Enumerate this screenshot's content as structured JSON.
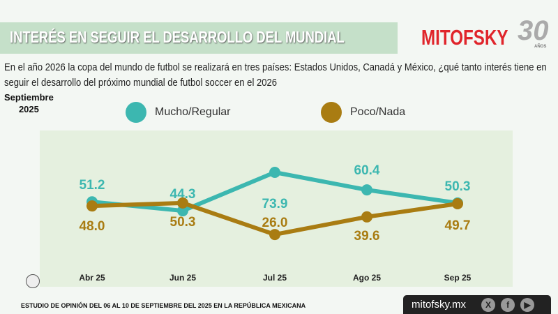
{
  "header": {
    "title": "INTERÉS EN SEGUIR EL DESARROLLO DEL MUNDIAL",
    "logo": "MITOFSKY",
    "logo_badge": "30",
    "logo_badge_sub": "AÑOS"
  },
  "question": "En el año 2026 la copa del mundo de futbol se realizará en tres países:  Estados Unidos, Canadá y México, ¿qué tanto interés tiene en seguir el desarrollo del próximo mundial de futbol soccer en el 2026",
  "period": {
    "month": "Septiembre",
    "year": "2025"
  },
  "footer": {
    "study": "ESTUDIO DE OPINIÓN DEL 06 AL 10 DE SEPTIEMBRE DEL 2025 EN LA REPÚBLICA MEXICANA",
    "site": "mitofsky.mx",
    "social": [
      "X",
      "f",
      "▶"
    ]
  },
  "chart_data": {
    "type": "line",
    "categories": [
      "Abr 25",
      "Jun 25",
      "Jul 25",
      "Ago 25",
      "Sep 25"
    ],
    "series": [
      {
        "name": "Mucho/Regular",
        "color": "#3cb7b0",
        "values": [
          51.2,
          44.3,
          73.9,
          60.4,
          50.3
        ]
      },
      {
        "name": "Poco/Nada",
        "color": "#a97c12",
        "values": [
          48.0,
          50.3,
          26.0,
          39.6,
          49.7
        ]
      }
    ],
    "legend": "top"
  }
}
